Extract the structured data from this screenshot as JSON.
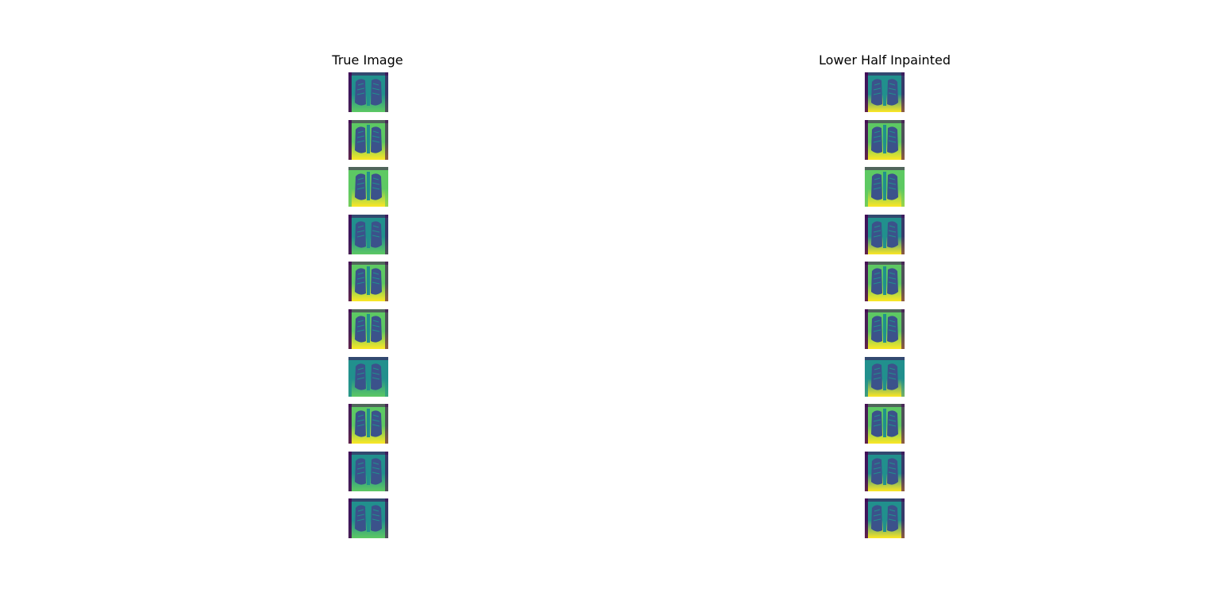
{
  "columns": [
    {
      "title": "True Image"
    },
    {
      "title": "Lower Half Inpainted"
    }
  ],
  "grid": {
    "rows": 10
  },
  "colors": {
    "dark": "#440154",
    "blue": "#3b528b",
    "teal": "#21908d",
    "green": "#5dc963",
    "yellow": "#fde725"
  },
  "icons": {
    "thumbnail": "chest-xray-thumbnail"
  }
}
